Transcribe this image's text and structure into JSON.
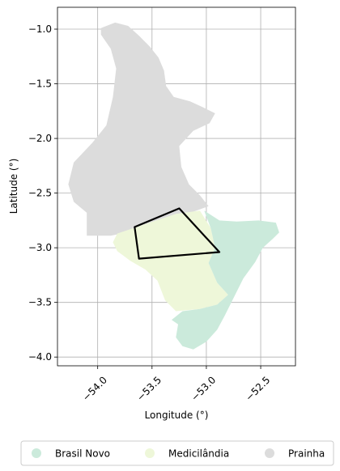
{
  "chart_data": {
    "type": "map",
    "xlabel": "Longitude (°)",
    "ylabel": "Latitude (°)",
    "xlim": [
      -54.37,
      -52.18
    ],
    "ylim": [
      -4.08,
      -0.8
    ],
    "x_ticks": [
      {
        "value": -54.0,
        "label": "−54.0"
      },
      {
        "value": -53.5,
        "label": "−53.5"
      },
      {
        "value": -53.0,
        "label": "−53.0"
      },
      {
        "value": -52.5,
        "label": "−52.5"
      }
    ],
    "y_ticks": [
      {
        "value": -1.0,
        "label": "−1.0"
      },
      {
        "value": -1.5,
        "label": "−1.5"
      },
      {
        "value": -2.0,
        "label": "−2.0"
      },
      {
        "value": -2.5,
        "label": "−2.5"
      },
      {
        "value": -3.0,
        "label": "−3.0"
      },
      {
        "value": -3.5,
        "label": "−3.5"
      },
      {
        "value": -4.0,
        "label": "−4.0"
      }
    ],
    "grid": true,
    "legend_position": "bottom",
    "regions": [
      {
        "name": "Prainha",
        "color": "#dcdcdc",
        "polygon": [
          [
            -53.97,
            -0.99
          ],
          [
            -53.84,
            -0.94
          ],
          [
            -53.72,
            -0.97
          ],
          [
            -53.62,
            -1.06
          ],
          [
            -53.52,
            -1.16
          ],
          [
            -53.44,
            -1.26
          ],
          [
            -53.39,
            -1.38
          ],
          [
            -53.37,
            -1.52
          ],
          [
            -53.3,
            -1.62
          ],
          [
            -53.15,
            -1.66
          ],
          [
            -53.02,
            -1.72
          ],
          [
            -52.92,
            -1.77
          ],
          [
            -52.97,
            -1.86
          ],
          [
            -53.12,
            -1.93
          ],
          [
            -53.25,
            -2.07
          ],
          [
            -53.23,
            -2.26
          ],
          [
            -53.16,
            -2.42
          ],
          [
            -53.06,
            -2.52
          ],
          [
            -52.98,
            -2.62
          ],
          [
            -53.12,
            -2.67
          ],
          [
            -53.3,
            -2.72
          ],
          [
            -53.48,
            -2.78
          ],
          [
            -53.68,
            -2.85
          ],
          [
            -53.88,
            -2.89
          ],
          [
            -54.1,
            -2.89
          ],
          [
            -54.1,
            -2.68
          ],
          [
            -54.22,
            -2.58
          ],
          [
            -54.27,
            -2.42
          ],
          [
            -54.22,
            -2.22
          ],
          [
            -54.05,
            -2.04
          ],
          [
            -53.92,
            -1.88
          ],
          [
            -53.86,
            -1.62
          ],
          [
            -53.83,
            -1.36
          ],
          [
            -53.88,
            -1.18
          ],
          [
            -53.97,
            -1.05
          ]
        ]
      },
      {
        "name": "Medicilândia",
        "color": "#eef7d9",
        "polygon": [
          [
            -53.82,
            -2.87
          ],
          [
            -53.55,
            -2.78
          ],
          [
            -53.28,
            -2.69
          ],
          [
            -53.06,
            -2.66
          ],
          [
            -52.96,
            -2.82
          ],
          [
            -52.92,
            -3.0
          ],
          [
            -52.98,
            -3.14
          ],
          [
            -52.9,
            -3.32
          ],
          [
            -52.8,
            -3.43
          ],
          [
            -52.9,
            -3.52
          ],
          [
            -53.06,
            -3.56
          ],
          [
            -53.28,
            -3.58
          ],
          [
            -53.38,
            -3.48
          ],
          [
            -53.45,
            -3.3
          ],
          [
            -53.56,
            -3.2
          ],
          [
            -53.7,
            -3.12
          ],
          [
            -53.82,
            -3.03
          ],
          [
            -53.86,
            -2.95
          ]
        ]
      },
      {
        "name": "Brasil Novo",
        "color": "#cbeadb",
        "polygon": [
          [
            -53.02,
            -2.66
          ],
          [
            -52.88,
            -2.75
          ],
          [
            -52.72,
            -2.76
          ],
          [
            -52.52,
            -2.75
          ],
          [
            -52.36,
            -2.77
          ],
          [
            -52.33,
            -2.86
          ],
          [
            -52.39,
            -2.92
          ],
          [
            -52.48,
            -3.0
          ],
          [
            -52.55,
            -3.13
          ],
          [
            -52.66,
            -3.28
          ],
          [
            -52.76,
            -3.48
          ],
          [
            -52.83,
            -3.62
          ],
          [
            -52.9,
            -3.75
          ],
          [
            -53.0,
            -3.86
          ],
          [
            -53.12,
            -3.93
          ],
          [
            -53.22,
            -3.9
          ],
          [
            -53.28,
            -3.82
          ],
          [
            -53.26,
            -3.7
          ],
          [
            -53.32,
            -3.66
          ],
          [
            -53.22,
            -3.58
          ],
          [
            -53.06,
            -3.56
          ],
          [
            -52.9,
            -3.52
          ],
          [
            -52.8,
            -3.43
          ],
          [
            -52.9,
            -3.32
          ],
          [
            -52.98,
            -3.14
          ],
          [
            -52.92,
            -3.0
          ],
          [
            -52.96,
            -2.82
          ]
        ]
      }
    ],
    "outline": {
      "color": "#000000",
      "polygon": [
        [
          -53.66,
          -2.81
        ],
        [
          -53.25,
          -2.64
        ],
        [
          -52.88,
          -3.04
        ],
        [
          -53.62,
          -3.1
        ]
      ]
    },
    "legend": [
      {
        "label": "Brasil Novo",
        "color": "#cbeadb"
      },
      {
        "label": "Medicilândia",
        "color": "#eef7d9"
      },
      {
        "label": "Prainha",
        "color": "#dcdcdc"
      }
    ]
  }
}
